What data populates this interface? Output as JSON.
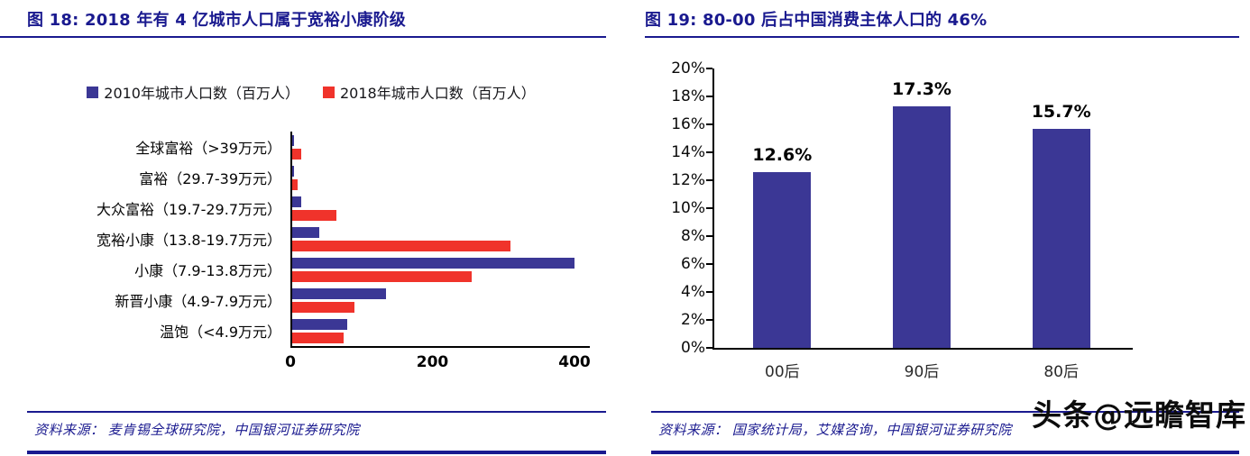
{
  "colors": {
    "navy": "#1a1a8f",
    "bar_blue": "#3b3795",
    "bar_red": "#f0332b",
    "axis": "#000000"
  },
  "left_panel": {
    "title": "图 18:  2018 年有 4 亿城市人口属于宽裕小康阶级",
    "source": "资料来源：  麦肯锡全球研究院，中国银河证券研究院"
  },
  "right_panel": {
    "title": "图 19:  80-00 后占中国消费主体人口的 46%",
    "source": "资料来源：  国家统计局，艾媒咨询，中国银河证券研究院"
  },
  "watermark": "头条@远瞻智库",
  "chart_data": [
    {
      "type": "bar",
      "orientation": "horizontal",
      "title": "图 18: 2018 年有 4 亿城市人口属于宽裕小康阶级",
      "categories": [
        "全球富裕（>39万元）",
        "富裕（29.7-39万元）",
        "大众富裕（19.7-29.7万元）",
        "宽裕小康（13.8-19.7万元）",
        "小康（7.9-13.8万元）",
        "新晋小康（4.9-7.9万元）",
        "温饱（<4.9万元）"
      ],
      "series": [
        {
          "name": "2010年城市人口数（百万人）",
          "color": "#3b3795",
          "values": [
            5,
            5,
            15,
            40,
            400,
            135,
            80
          ]
        },
        {
          "name": "2018年城市人口数（百万人）",
          "color": "#f0332b",
          "values": [
            15,
            10,
            65,
            310,
            255,
            90,
            75
          ]
        }
      ],
      "xlim": [
        0,
        420
      ],
      "xticks": [
        0,
        200,
        400
      ],
      "legend_position": "top",
      "grid": false,
      "unit": "百万人"
    },
    {
      "type": "bar",
      "orientation": "vertical",
      "title": "图 19: 80-00 后占中国消费主体人口的 46%",
      "categories": [
        "00后",
        "90后",
        "80后"
      ],
      "values": [
        12.6,
        17.3,
        15.7
      ],
      "labels": [
        "12.6%",
        "17.3%",
        "15.7%"
      ],
      "ylim": [
        0,
        20
      ],
      "ytick_step": 2,
      "bar_color": "#3b3795",
      "grid": false
    }
  ]
}
